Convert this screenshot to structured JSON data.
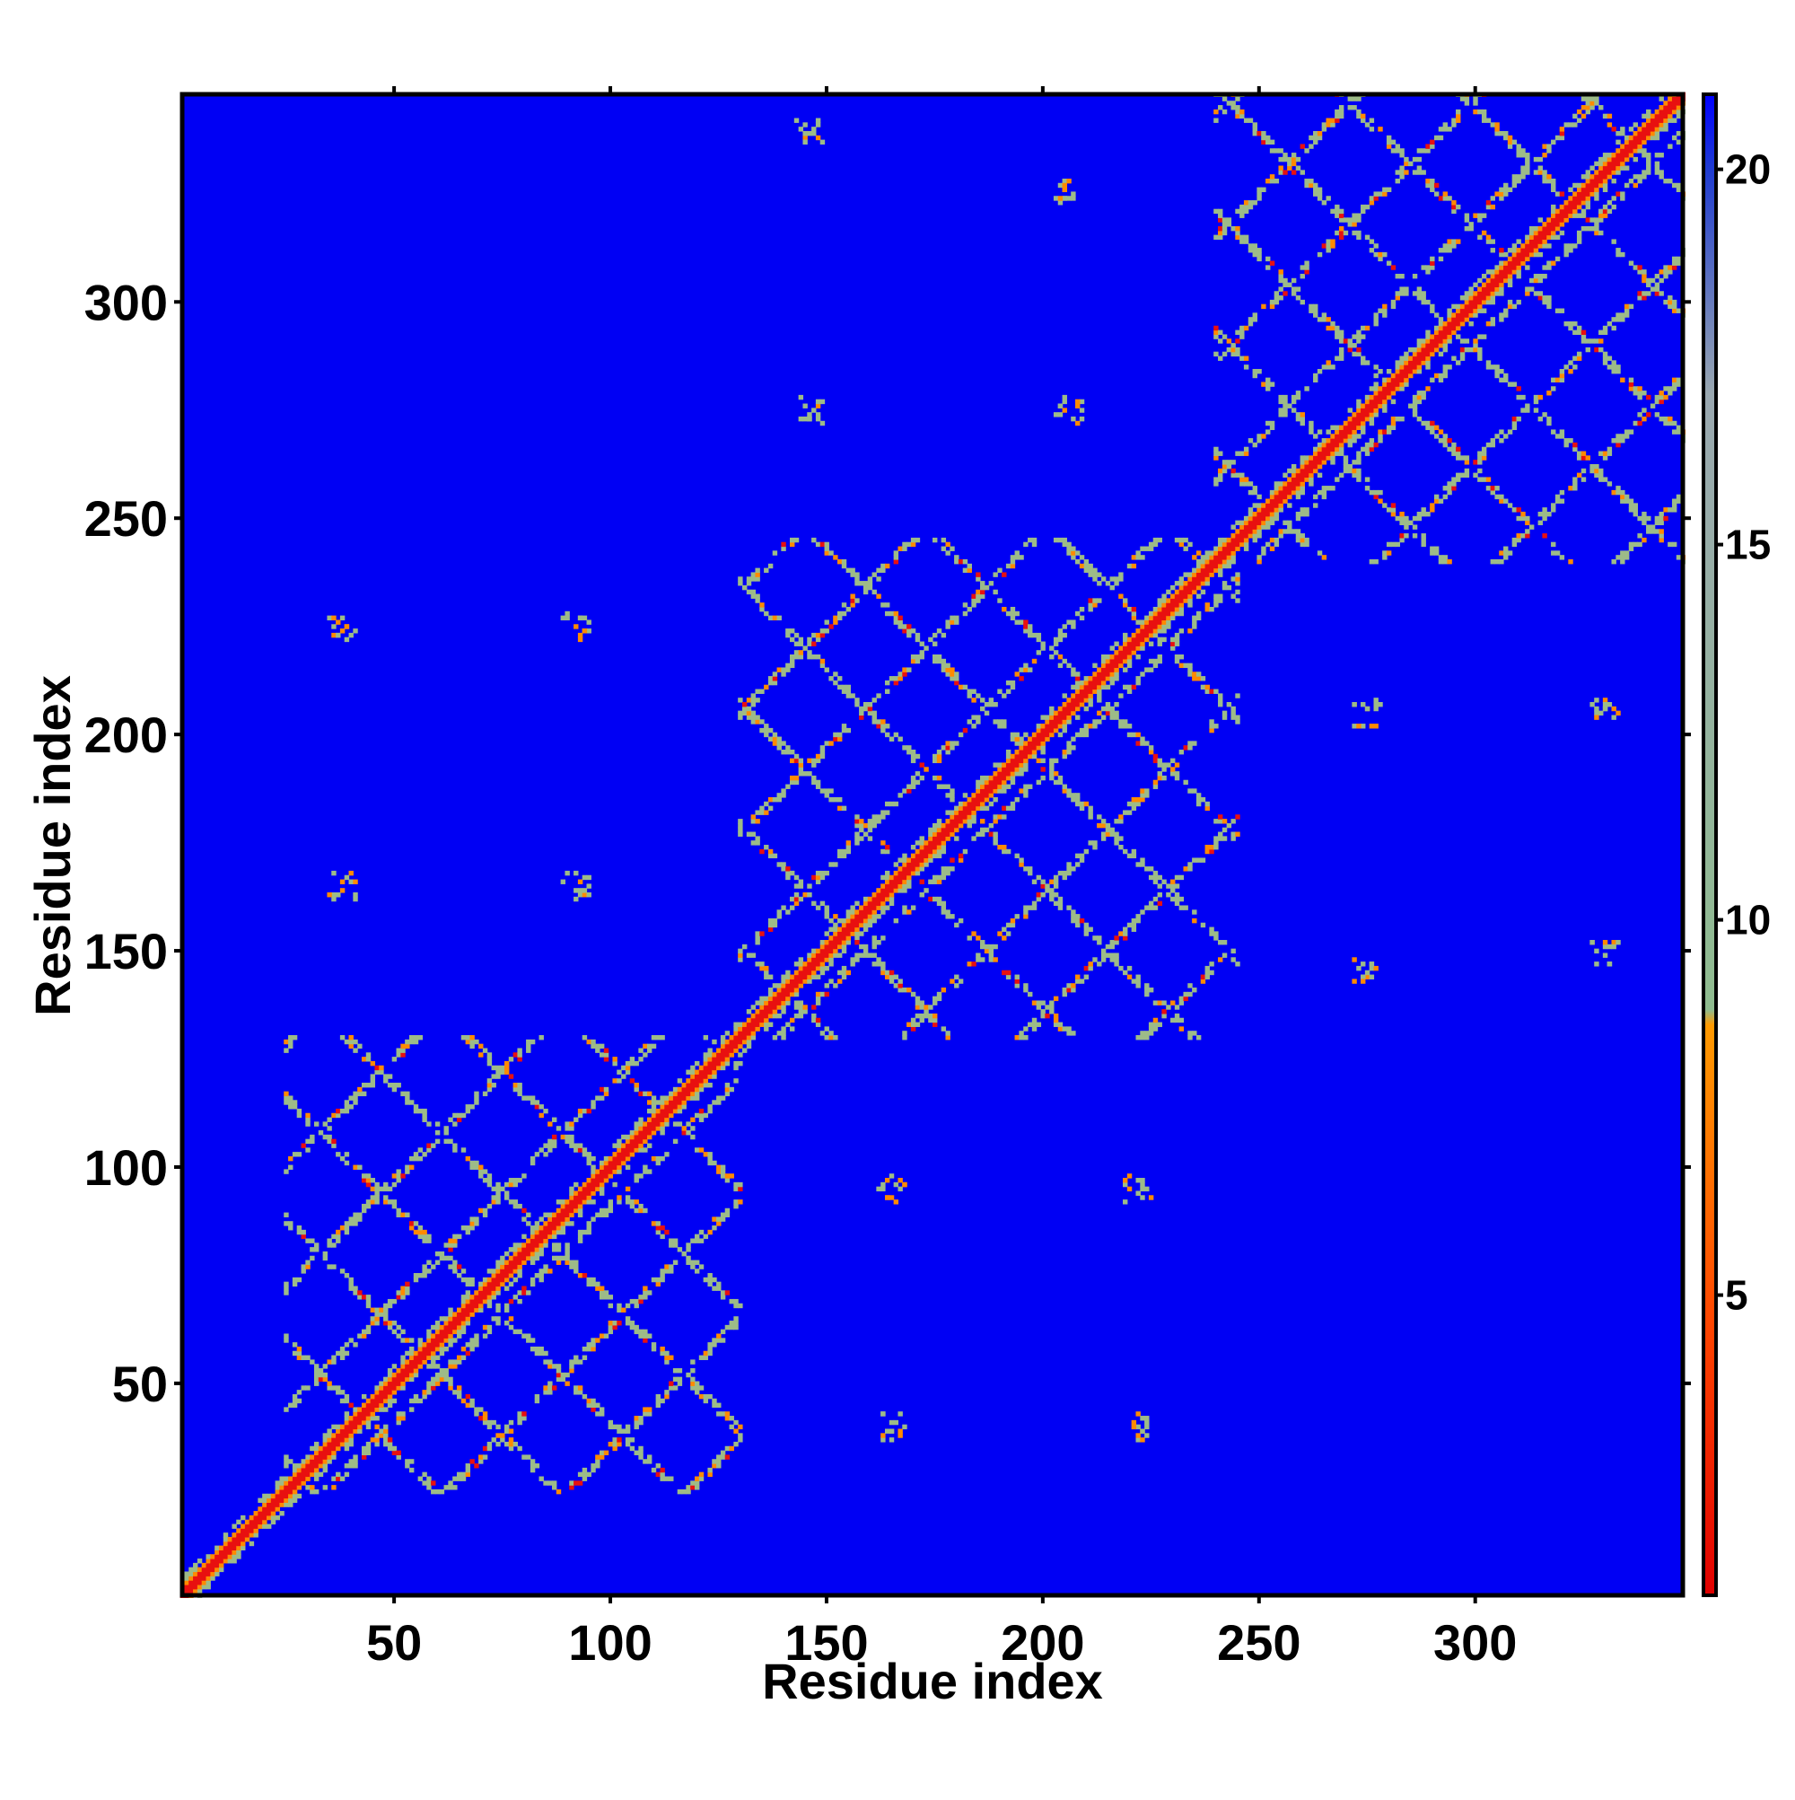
{
  "chart_data": {
    "type": "heatmap",
    "title": "",
    "xlabel": "Residue index",
    "ylabel": "Residue index",
    "n_residues": 348,
    "xlim": [
      1,
      348
    ],
    "ylim": [
      1,
      348
    ],
    "x_ticks": [
      50,
      100,
      150,
      200,
      250,
      300
    ],
    "y_ticks": [
      50,
      100,
      150,
      200,
      250,
      300
    ],
    "colorbar": {
      "ticks": [
        5,
        10,
        15,
        20
      ],
      "range": [
        1,
        21
      ],
      "colors": [
        "#e00000",
        "#ff4500",
        "#ff9a00",
        "#8fbc8f",
        "#9aa8b0",
        "#1f3bd0",
        "#0000ff"
      ],
      "threshold_low": 4.5,
      "threshold_mid": 8
    },
    "background_color": "#0000f4",
    "contact_color": "#e81010",
    "near_color": "#ff8a00",
    "shell_color": "#9dbb88",
    "domains": [
      {
        "name": "",
        "start": 25,
        "end": 130
      },
      {
        "name": "",
        "start": 130,
        "end": 245
      },
      {
        "name": "",
        "start": 240,
        "end": 348
      }
    ],
    "grid": false,
    "legend": "colorbar-right"
  }
}
